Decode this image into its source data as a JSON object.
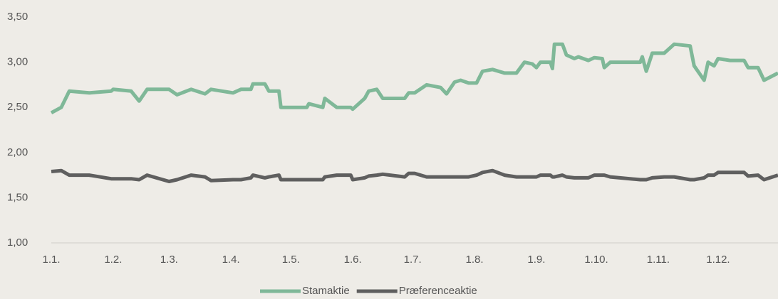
{
  "chart_data": {
    "type": "line",
    "x": [
      "1.1.",
      "6.1.",
      "10.1.",
      "20.1.",
      "31.1.",
      "1.2.",
      "10.2.",
      "14.2.",
      "18.2.",
      "1.3.",
      "5.3.",
      "12.3.",
      "19.3.",
      "22.3.",
      "2.4.",
      "6.4.",
      "11.4.",
      "12.4.",
      "18.4.",
      "20.4.",
      "25.4.",
      "26.4.",
      "9.5.",
      "10.5.",
      "17.5.",
      "18.5.",
      "24.5.",
      "31.5.",
      "1.6.",
      "7.6.",
      "9.6.",
      "13.6.",
      "16.6.",
      "27.6.",
      "29.6.",
      "2.7.",
      "8.7.",
      "15.7.",
      "18.7.",
      "22.7.",
      "25.7.",
      "29.7.",
      "2.8.",
      "5.8.",
      "10.8.",
      "16.8.",
      "22.8.",
      "26.8.",
      "30.8.",
      "1.9.",
      "3.9.",
      "8.9.",
      "9.9.",
      "10.9.",
      "14.9.",
      "16.9.",
      "20.9.",
      "22.9.",
      "27.9.",
      "30.9.",
      "4.10.",
      "5.10.",
      "8.10.",
      "23.10.",
      "24.10.",
      "26.10.",
      "29.10.",
      "4.11.",
      "9.11.",
      "17.11.",
      "19.11.",
      "24.11.",
      "26.11.",
      "29.11.",
      "1.12.",
      "7.12.",
      "14.12.",
      "16.12.",
      "21.12.",
      "24.12.",
      "31.12."
    ],
    "series": [
      {
        "name": "Stamaktie",
        "color": "#7fb898",
        "values": [
          2.44,
          2.5,
          2.68,
          2.66,
          2.68,
          2.7,
          2.68,
          2.57,
          2.7,
          2.7,
          2.64,
          2.7,
          2.65,
          2.7,
          2.66,
          2.7,
          2.7,
          2.76,
          2.76,
          2.68,
          2.68,
          2.5,
          2.5,
          2.54,
          2.5,
          2.6,
          2.5,
          2.5,
          2.48,
          2.6,
          2.68,
          2.7,
          2.6,
          2.6,
          2.66,
          2.66,
          2.75,
          2.72,
          2.65,
          2.78,
          2.8,
          2.77,
          2.77,
          2.9,
          2.92,
          2.88,
          2.88,
          3.0,
          2.98,
          2.94,
          3.0,
          3.0,
          2.93,
          3.2,
          3.2,
          3.08,
          3.04,
          3.06,
          3.02,
          3.05,
          3.04,
          2.94,
          3.0,
          3.0,
          3.06,
          2.9,
          3.1,
          3.1,
          3.2,
          3.18,
          2.96,
          2.8,
          3.0,
          2.96,
          3.04,
          3.02,
          3.02,
          2.94,
          2.94,
          2.8,
          2.88
        ]
      },
      {
        "name": "Præferenceaktie",
        "color": "#5f5f5f",
        "values": [
          1.79,
          1.8,
          1.75,
          1.75,
          1.71,
          1.71,
          1.71,
          1.7,
          1.75,
          1.68,
          1.7,
          1.75,
          1.73,
          1.69,
          1.7,
          1.7,
          1.72,
          1.75,
          1.72,
          1.73,
          1.75,
          1.7,
          1.7,
          1.7,
          1.7,
          1.73,
          1.75,
          1.75,
          1.7,
          1.72,
          1.74,
          1.75,
          1.76,
          1.73,
          1.77,
          1.77,
          1.73,
          1.73,
          1.73,
          1.73,
          1.73,
          1.73,
          1.75,
          1.78,
          1.8,
          1.75,
          1.73,
          1.73,
          1.73,
          1.73,
          1.75,
          1.75,
          1.73,
          1.73,
          1.75,
          1.73,
          1.72,
          1.72,
          1.72,
          1.75,
          1.75,
          1.75,
          1.73,
          1.7,
          1.7,
          1.7,
          1.72,
          1.73,
          1.73,
          1.7,
          1.7,
          1.72,
          1.75,
          1.75,
          1.78,
          1.78,
          1.78,
          1.74,
          1.75,
          1.7,
          1.75
        ]
      }
    ],
    "xlim": [
      "1.1.",
      "31.12."
    ],
    "xticks": [
      "1.1.",
      "1.2.",
      "1.3.",
      "1.4.",
      "1.5.",
      "1.6.",
      "1.7.",
      "1.8.",
      "1.9.",
      "1.10.",
      "1.11.",
      "1.12."
    ],
    "ylim": [
      1,
      3.5
    ],
    "yticks": [
      {
        "value": 1,
        "label": "1,00"
      },
      {
        "value": 1.5,
        "label": "1,50"
      },
      {
        "value": 2,
        "label": "2,00"
      },
      {
        "value": 2.5,
        "label": "2,50"
      },
      {
        "value": 3,
        "label": "3,00"
      },
      {
        "value": 3.5,
        "label": "3,50"
      }
    ],
    "legend": "bottom"
  }
}
